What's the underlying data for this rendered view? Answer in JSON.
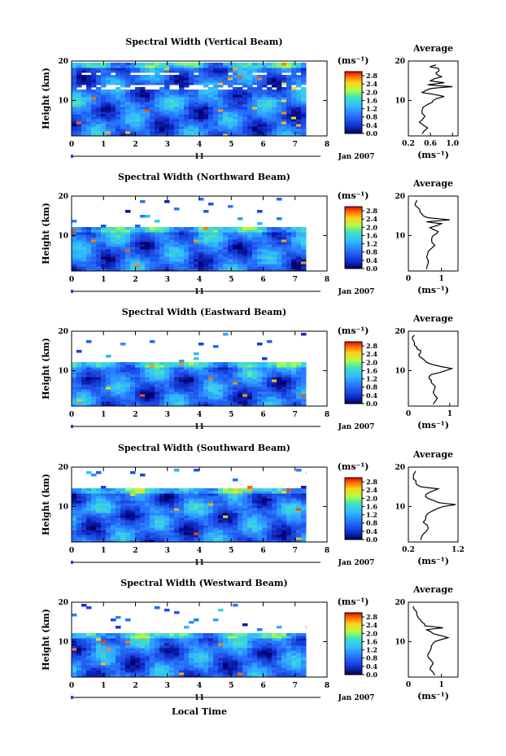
{
  "figure": {
    "unit_label": "(ms⁻¹)",
    "date_label": "Jan 2007",
    "day_label": "11",
    "xlabel": "Local Time",
    "ylabel": "Height (km)",
    "average_title": "Average"
  },
  "chart_data": [
    {
      "type": "heatmap",
      "title": "Spectral Width (Vertical Beam)",
      "xlabel": "Local Time",
      "ylabel": "Height (km)",
      "xlim": [
        0,
        8
      ],
      "ylim": [
        1,
        20
      ],
      "x_ticks": [
        0,
        1,
        2,
        3,
        4,
        5,
        6,
        7,
        8
      ],
      "y_ticks": [
        10,
        20
      ],
      "data_x_range": [
        0,
        7.35
      ],
      "cloud_top_km": 19.8,
      "colorbar": {
        "ticks": [
          0.0,
          0.4,
          0.8,
          1.2,
          1.6,
          2.0,
          2.4,
          2.8
        ],
        "range": [
          0,
          3.0
        ]
      },
      "average_profile": {
        "xlabel": "(ms⁻¹)",
        "xlim": [
          0.2,
          1.1
        ],
        "x_ticks": [
          0.2,
          0.6,
          1.0
        ],
        "x_tick_labels": [
          "0.2",
          "0.6",
          "1.0"
        ],
        "height": [
          1.5,
          3,
          4.5,
          6,
          7.5,
          9,
          10,
          11,
          12,
          13,
          13.5,
          14,
          14.5,
          15,
          16,
          17,
          18,
          18.5,
          19
        ],
        "value": [
          0.45,
          0.55,
          0.4,
          0.5,
          0.45,
          0.55,
          0.65,
          0.85,
          0.45,
          0.6,
          1.0,
          0.55,
          0.85,
          0.6,
          0.8,
          0.7,
          0.75,
          0.6,
          0.7
        ]
      }
    },
    {
      "type": "heatmap",
      "title": "Spectral Width (Northward Beam)",
      "xlabel": "Local Time",
      "ylabel": "Height (km)",
      "xlim": [
        0,
        8
      ],
      "ylim": [
        1,
        20
      ],
      "x_ticks": [
        0,
        1,
        2,
        3,
        4,
        5,
        6,
        7,
        8
      ],
      "y_ticks": [
        10,
        20
      ],
      "data_x_range": [
        0,
        7.35
      ],
      "cloud_top_km": 12.5,
      "colorbar": {
        "ticks": [
          0.0,
          0.4,
          0.8,
          1.2,
          1.6,
          2.0,
          2.4,
          2.8
        ],
        "range": [
          0,
          3.0
        ]
      },
      "average_profile": {
        "xlabel": "(ms⁻¹)",
        "xlim": [
          0,
          1.5
        ],
        "x_ticks": [
          0,
          1
        ],
        "x_tick_labels": [
          "0",
          "1"
        ],
        "height": [
          1.5,
          3,
          4.5,
          6,
          7.5,
          9,
          10,
          11,
          12,
          13,
          13.5,
          14,
          14.5,
          15,
          16,
          17,
          18,
          19
        ],
        "value": [
          0.55,
          0.6,
          0.55,
          0.6,
          0.8,
          0.7,
          0.75,
          0.9,
          0.65,
          1.0,
          0.55,
          1.25,
          0.6,
          0.45,
          0.35,
          0.3,
          0.2,
          0.25
        ]
      }
    },
    {
      "type": "heatmap",
      "title": "Spectral Width (Eastward Beam)",
      "xlabel": "Local Time",
      "ylabel": "Height (km)",
      "xlim": [
        0,
        8
      ],
      "ylim": [
        1,
        20
      ],
      "x_ticks": [
        0,
        1,
        2,
        3,
        4,
        5,
        6,
        7,
        8
      ],
      "y_ticks": [
        10,
        20
      ],
      "data_x_range": [
        0,
        7.35
      ],
      "cloud_top_km": 12.5,
      "colorbar": {
        "ticks": [
          0.0,
          0.4,
          0.8,
          1.2,
          1.6,
          2.0,
          2.4,
          2.8
        ],
        "range": [
          0,
          3.0
        ]
      },
      "average_profile": {
        "xlabel": "(ms⁻¹)",
        "xlim": [
          0,
          1.2
        ],
        "x_ticks": [
          0,
          1
        ],
        "x_tick_labels": [
          "0",
          "1"
        ],
        "height": [
          1.5,
          3,
          4.5,
          6,
          7,
          8,
          9,
          10,
          10.5,
          11,
          12,
          13,
          14,
          15,
          16,
          17,
          18,
          19
        ],
        "value": [
          0.6,
          0.7,
          0.6,
          0.65,
          0.55,
          0.5,
          0.55,
          0.9,
          1.05,
          0.8,
          0.45,
          0.35,
          0.25,
          0.3,
          0.2,
          0.15,
          0.1,
          0.15
        ]
      }
    },
    {
      "type": "heatmap",
      "title": "Spectral Width (Southward Beam)",
      "xlabel": "Local Time",
      "ylabel": "Height (km)",
      "xlim": [
        0,
        8
      ],
      "ylim": [
        1,
        20
      ],
      "x_ticks": [
        0,
        1,
        2,
        3,
        4,
        5,
        6,
        7,
        8
      ],
      "y_ticks": [
        10,
        20
      ],
      "data_x_range": [
        0,
        7.35
      ],
      "cloud_top_km": 15,
      "colorbar": {
        "ticks": [
          0.0,
          0.4,
          0.8,
          1.2,
          1.6,
          2.0,
          2.4,
          2.8
        ],
        "range": [
          0,
          3.0
        ]
      },
      "average_profile": {
        "xlabel": "(ms⁻¹)",
        "xlim": [
          0.2,
          1.2
        ],
        "x_ticks": [
          0.2,
          1.2
        ],
        "x_tick_labels": [
          "0.2",
          "1.2"
        ],
        "height": [
          1.5,
          3,
          4.5,
          6,
          7.5,
          9,
          10,
          10.5,
          11,
          12,
          13,
          14,
          14.5,
          15,
          16,
          17,
          18,
          19
        ],
        "value": [
          0.45,
          0.5,
          0.6,
          0.5,
          0.55,
          0.7,
          0.9,
          1.15,
          0.8,
          0.6,
          0.55,
          0.7,
          0.8,
          0.45,
          0.35,
          0.3,
          0.3,
          0.35
        ]
      }
    },
    {
      "type": "heatmap",
      "title": "Spectral Width (Westward Beam)",
      "xlabel": "Local Time",
      "ylabel": "Height (km)",
      "xlim": [
        0,
        8
      ],
      "ylim": [
        1,
        20
      ],
      "x_ticks": [
        0,
        1,
        2,
        3,
        4,
        5,
        6,
        7,
        8
      ],
      "y_ticks": [
        10,
        20
      ],
      "data_x_range": [
        0,
        7.35
      ],
      "cloud_top_km": 12.5,
      "colorbar": {
        "ticks": [
          0.0,
          0.4,
          0.8,
          1.2,
          1.6,
          2.0,
          2.4,
          2.8
        ],
        "range": [
          0,
          3.0
        ]
      },
      "average_profile": {
        "xlabel": "(ms⁻¹)",
        "xlim": [
          0,
          1.5
        ],
        "x_ticks": [
          0,
          1
        ],
        "x_tick_labels": [
          "0",
          "1"
        ],
        "height": [
          1.5,
          3,
          4.5,
          6,
          7.5,
          9,
          10,
          11,
          12,
          13,
          13.5,
          14,
          15,
          16,
          17,
          18,
          19
        ],
        "value": [
          0.8,
          0.65,
          0.75,
          0.6,
          0.65,
          0.7,
          0.8,
          1.2,
          0.75,
          0.55,
          1.05,
          0.5,
          0.4,
          0.3,
          0.25,
          0.2,
          0.15
        ]
      }
    }
  ]
}
